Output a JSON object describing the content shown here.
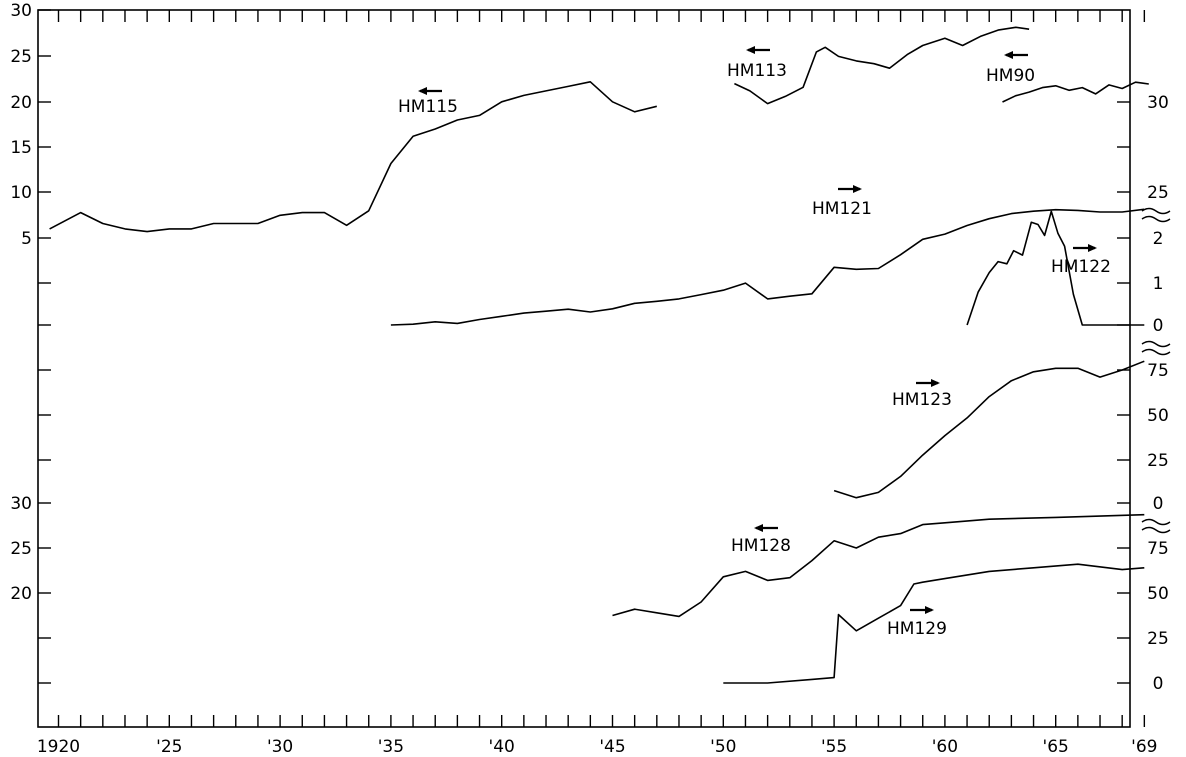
{
  "chart_data": {
    "type": "line",
    "title": "",
    "xlabel": "",
    "ylabel": "",
    "xlim": [
      1919,
      1969
    ],
    "x_ticks": [
      "1920",
      "'25",
      "'30",
      "'35",
      "'40",
      "'45",
      "'50",
      "'55",
      "'60",
      "'65",
      "'69"
    ],
    "left_axis_groups": [
      {
        "ticks": [
          "30",
          "25",
          "20",
          "15",
          "10",
          "5"
        ]
      },
      {
        "ticks": [
          "30",
          "25",
          "20"
        ]
      }
    ],
    "right_axis_groups": [
      {
        "ticks": [
          "30",
          "25"
        ]
      },
      {
        "ticks": [
          "2",
          "1",
          "0"
        ]
      },
      {
        "ticks": [
          "75",
          "50",
          "25",
          "0"
        ]
      },
      {
        "ticks": [
          "75",
          "50",
          "25",
          "0"
        ]
      }
    ],
    "series": [
      {
        "name": "HM115",
        "arrow": "left",
        "x": [
          1919.6,
          1921,
          1922,
          1923,
          1924,
          1925,
          1926,
          1927,
          1928,
          1929,
          1930,
          1931,
          1932,
          1933,
          1934,
          1935,
          1936,
          1937,
          1938,
          1939,
          1940,
          1941,
          1942,
          1943,
          1944,
          1945,
          1946,
          1947
        ],
        "y": [
          6.0,
          7.8,
          6.6,
          6.0,
          5.7,
          6.0,
          6.0,
          6.6,
          6.6,
          6.6,
          7.5,
          7.8,
          7.8,
          6.4,
          8.0,
          13.2,
          16.2,
          17.0,
          18.0,
          18.5,
          20.0,
          20.7,
          21.2,
          21.7,
          22.2,
          20.0,
          18.9,
          19.5
        ]
      },
      {
        "name": "HM121",
        "arrow": "right",
        "x": [
          1935,
          1936,
          1937,
          1938,
          1939,
          1940,
          1941,
          1942,
          1943,
          1944,
          1945,
          1946,
          1947,
          1948,
          1949,
          1950,
          1951,
          1952,
          1953,
          1954,
          1955,
          1956,
          1957,
          1958,
          1959,
          1960,
          1961,
          1962,
          1963,
          1964,
          1965,
          1966,
          1967,
          1968,
          1969
        ],
        "y": [
          0.0,
          0.2,
          0.8,
          0.4,
          1.4,
          2.2,
          3.0,
          3.5,
          4.0,
          3.3,
          4.1,
          5.5,
          6.0,
          6.6,
          7.7,
          8.8,
          10.6,
          6.6,
          7.3,
          7.9,
          14.6,
          14.1,
          14.3,
          17.8,
          21.7,
          23.0,
          25.2,
          26.9,
          28.2,
          28.8,
          29.2,
          29.0,
          28.6,
          28.6,
          29.3
        ]
      },
      {
        "name": "HM113",
        "arrow": "left",
        "x": [
          1950.5,
          1951.2,
          1952,
          1952.8,
          1953.6,
          1954.2,
          1954.6,
          1955.2,
          1956,
          1956.8,
          1957.5,
          1958.3,
          1959,
          1960,
          1960.8,
          1961.6,
          1962.4,
          1963.2,
          1963.8
        ],
        "y": [
          22.0,
          21.2,
          19.8,
          20.6,
          21.6,
          25.5,
          26.0,
          25.0,
          24.5,
          24.2,
          23.7,
          25.2,
          26.2,
          27.0,
          26.2,
          27.2,
          27.9,
          28.2,
          28.0
        ]
      },
      {
        "name": "HM90",
        "arrow": "left",
        "x": [
          1962.6,
          1963.2,
          1963.8,
          1964.4,
          1965,
          1965.6,
          1966.2,
          1966.8,
          1967.4,
          1968,
          1968.6,
          1969.2
        ],
        "y": [
          30.0,
          30.7,
          31.1,
          31.6,
          31.8,
          31.3,
          31.6,
          30.9,
          31.9,
          31.5,
          32.2,
          32.0
        ]
      },
      {
        "name": "HM122",
        "arrow": "right",
        "x": [
          1961,
          1961.5,
          1962,
          1962.4,
          1962.8,
          1963.1,
          1963.5,
          1963.9,
          1964.2,
          1964.5,
          1964.8,
          1965.1,
          1965.4,
          1965.8,
          1966.2,
          1967,
          1968,
          1969
        ],
        "y": [
          0.0,
          0.75,
          1.2,
          1.45,
          1.4,
          1.7,
          1.6,
          2.35,
          2.3,
          2.05,
          2.6,
          2.1,
          1.8,
          0.7,
          0.0,
          0.0,
          0.0,
          0.0
        ]
      },
      {
        "name": "HM123",
        "arrow": "right",
        "x": [
          1955,
          1956,
          1957,
          1958,
          1959,
          1960,
          1961,
          1962,
          1963,
          1964,
          1965,
          1966,
          1967,
          1968,
          1969
        ],
        "y": [
          7,
          3,
          6,
          15,
          27,
          38,
          48,
          60,
          69,
          74,
          76,
          76,
          71,
          75,
          80
        ]
      },
      {
        "name": "HM128",
        "arrow": "left",
        "x": [
          1945,
          1946,
          1947,
          1948,
          1949,
          1950,
          1951,
          1952,
          1953,
          1954,
          1955,
          1956,
          1957,
          1958,
          1959,
          1960,
          1962,
          1965,
          1969
        ],
        "y": [
          17.5,
          18.2,
          17.8,
          17.4,
          19.0,
          21.8,
          22.4,
          21.4,
          21.7,
          23.6,
          25.8,
          25.0,
          26.2,
          26.6,
          27.6,
          27.8,
          28.2,
          28.4,
          28.7
        ]
      },
      {
        "name": "HM129",
        "arrow": "right",
        "x": [
          1950,
          1952,
          1954,
          1955,
          1955.2,
          1956,
          1957,
          1958,
          1958.6,
          1959,
          1960,
          1962,
          1964,
          1966,
          1968,
          1969
        ],
        "y": [
          0,
          0,
          2,
          3,
          38,
          29,
          36,
          43,
          55,
          56,
          58,
          62,
          64,
          66,
          63,
          64
        ]
      }
    ]
  }
}
